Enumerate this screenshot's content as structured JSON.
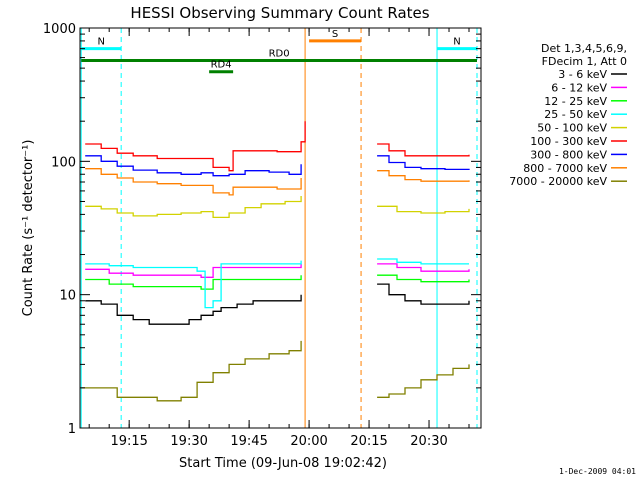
{
  "chart_data": {
    "type": "line",
    "title": "HESSI Observing Summary Count Rates",
    "xlabel": "Start Time (09-Jun-08 19:02:42)",
    "ylabel": "Count Rate (s⁻¹ detector⁻¹)",
    "y_scale": "log",
    "ylim": [
      1,
      1000
    ],
    "xlim": [
      "19:02:42",
      "20:43:00"
    ],
    "x_ticks": [
      "19:15",
      "19:30",
      "19:45",
      "20:00",
      "20:15",
      "20:30"
    ],
    "y_ticks": [
      "1",
      "10",
      "100",
      "1000"
    ],
    "footer": "1-Dec-2009 04:01",
    "legend": {
      "placement": "top-right outside",
      "header": [
        "Det 1,3,4,5,6,9,",
        "FDecim 1, Att 0"
      ]
    },
    "series": [
      {
        "name": "3 - 6 keV",
        "color": "#000000",
        "x": [
          "19:04",
          "19:08",
          "19:12",
          "19:16",
          "19:20",
          "19:25",
          "19:30",
          "19:33",
          "19:36",
          "19:38",
          "19:42",
          "19:46",
          "19:50",
          "19:55",
          "19:58",
          "20:17",
          "20:20",
          "20:24",
          "20:28",
          "20:32",
          "20:36",
          "20:40"
        ],
        "y": [
          9,
          8.5,
          7,
          6.5,
          6,
          6,
          6.5,
          7,
          7.5,
          8,
          8.5,
          9,
          9,
          9,
          10,
          12,
          10,
          9,
          8.5,
          8.5,
          8.5,
          9
        ]
      },
      {
        "name": "6 - 12 keV",
        "color": "#ff00ff",
        "x": [
          "19:04",
          "19:10",
          "19:16",
          "19:22",
          "19:28",
          "19:33",
          "19:36",
          "19:40",
          "19:46",
          "19:52",
          "19:58",
          "20:17",
          "20:22",
          "20:28",
          "20:34",
          "20:40"
        ],
        "y": [
          15.5,
          14.5,
          14,
          14,
          14,
          13.5,
          16,
          16,
          16,
          16,
          17,
          17,
          16,
          15,
          15,
          15.5
        ]
      },
      {
        "name": "12 - 25 keV",
        "color": "#00ff00",
        "x": [
          "19:04",
          "19:10",
          "19:16",
          "19:22",
          "19:28",
          "19:33",
          "19:36",
          "19:40",
          "19:46",
          "19:52",
          "19:58",
          "20:17",
          "20:22",
          "20:28",
          "20:34",
          "20:40"
        ],
        "y": [
          13,
          12,
          11.5,
          11.5,
          11.5,
          11,
          13,
          13,
          13,
          13,
          14,
          14,
          13,
          12.5,
          12.5,
          13
        ]
      },
      {
        "name": "25 - 50 keV",
        "color": "#00ffff",
        "x": [
          "19:04",
          "19:10",
          "19:16",
          "19:22",
          "19:28",
          "19:32",
          "19:34",
          "19:36",
          "19:38",
          "19:42",
          "19:46",
          "19:52",
          "19:58",
          "20:17",
          "20:22",
          "20:28",
          "20:34",
          "20:40"
        ],
        "y": [
          17,
          16.5,
          16,
          16,
          16,
          15,
          8,
          9,
          17,
          17,
          17,
          17,
          18,
          18.5,
          17.5,
          17,
          17,
          17
        ]
      },
      {
        "name": "50 - 100 keV",
        "color": "#d2d200",
        "x": [
          "19:04",
          "19:08",
          "19:12",
          "19:16",
          "19:22",
          "19:28",
          "19:33",
          "19:36",
          "19:40",
          "19:44",
          "19:48",
          "19:54",
          "19:58",
          "20:17",
          "20:22",
          "20:28",
          "20:34",
          "20:40"
        ],
        "y": [
          46,
          44,
          41,
          39,
          40,
          41,
          42,
          38,
          41,
          45,
          48,
          50,
          55,
          46,
          42,
          41,
          42,
          44
        ]
      },
      {
        "name": "100 - 300 keV",
        "color": "#ff0000",
        "x": [
          "19:04",
          "19:08",
          "19:12",
          "19:16",
          "19:22",
          "19:28",
          "19:33",
          "19:36",
          "19:40",
          "19:41",
          "19:46",
          "19:52",
          "19:58",
          "19:59",
          "20:17",
          "20:20",
          "20:24",
          "20:28",
          "20:34",
          "20:40"
        ],
        "y": [
          135,
          125,
          115,
          110,
          105,
          105,
          105,
          90,
          85,
          120,
          120,
          118,
          140,
          200,
          135,
          120,
          110,
          110,
          110,
          112
        ]
      },
      {
        "name": "300 - 800 keV",
        "color": "#0000ff",
        "x": [
          "19:04",
          "19:08",
          "19:12",
          "19:16",
          "19:22",
          "19:28",
          "19:33",
          "19:36",
          "19:40",
          "19:44",
          "19:50",
          "19:55",
          "19:58",
          "20:17",
          "20:20",
          "20:24",
          "20:28",
          "20:34",
          "20:40"
        ],
        "y": [
          110,
          100,
          92,
          86,
          82,
          80,
          82,
          78,
          80,
          85,
          83,
          80,
          95,
          110,
          98,
          90,
          88,
          87,
          88
        ]
      },
      {
        "name": "800 - 7000 keV",
        "color": "#ff8000",
        "x": [
          "19:04",
          "19:08",
          "19:12",
          "19:16",
          "19:22",
          "19:28",
          "19:33",
          "19:36",
          "19:40",
          "19:41",
          "19:46",
          "19:52",
          "19:58",
          "20:17",
          "20:20",
          "20:24",
          "20:28",
          "20:34",
          "20:40"
        ],
        "y": [
          88,
          80,
          75,
          70,
          68,
          66,
          66,
          58,
          56,
          64,
          64,
          62,
          75,
          85,
          78,
          73,
          71,
          71,
          72
        ]
      },
      {
        "name": "7000 - 20000 keV",
        "color": "#808000",
        "x": [
          "19:03",
          "19:08",
          "19:12",
          "19:16",
          "19:22",
          "19:28",
          "19:32",
          "19:36",
          "19:40",
          "19:44",
          "19:50",
          "19:55",
          "19:58",
          "20:17",
          "20:20",
          "20:24",
          "20:28",
          "20:32",
          "20:36",
          "20:40"
        ],
        "y": [
          2,
          2,
          1.7,
          1.7,
          1.6,
          1.7,
          2.2,
          2.6,
          3,
          3.3,
          3.6,
          3.8,
          4.5,
          1.7,
          1.8,
          2,
          2.3,
          2.5,
          2.8,
          3
        ]
      }
    ],
    "annotations": [
      {
        "label": "N",
        "color": "#00ffff",
        "x_start": "19:03",
        "x_end": "19:13",
        "y": 700
      },
      {
        "label": "N",
        "color": "#00ffff",
        "x_start": "20:32",
        "x_end": "20:42",
        "y": 700
      },
      {
        "label": "RD0",
        "color": "#008000",
        "x_start": "19:03",
        "x_end": "20:42",
        "y": 570
      },
      {
        "label": "RD4",
        "color": "#008000",
        "x_start": "19:35",
        "x_end": "19:41",
        "y": 470
      },
      {
        "label": "S",
        "color": "#ff8000",
        "x_start": "20:00",
        "x_end": "20:13",
        "y": 800
      }
    ],
    "vertical_lines": [
      {
        "x": "19:13",
        "color": "#00ffff",
        "style": "dashed"
      },
      {
        "x": "20:32",
        "color": "#00ffff",
        "style": "solid"
      },
      {
        "x": "20:42",
        "color": "#00ffff",
        "style": "dashed"
      },
      {
        "x": "19:03",
        "color": "#00ffff",
        "style": "solid"
      },
      {
        "x": "19:59",
        "color": "#ff8000",
        "style": "solid"
      },
      {
        "x": "20:13",
        "color": "#ff8000",
        "style": "dashed"
      }
    ]
  }
}
